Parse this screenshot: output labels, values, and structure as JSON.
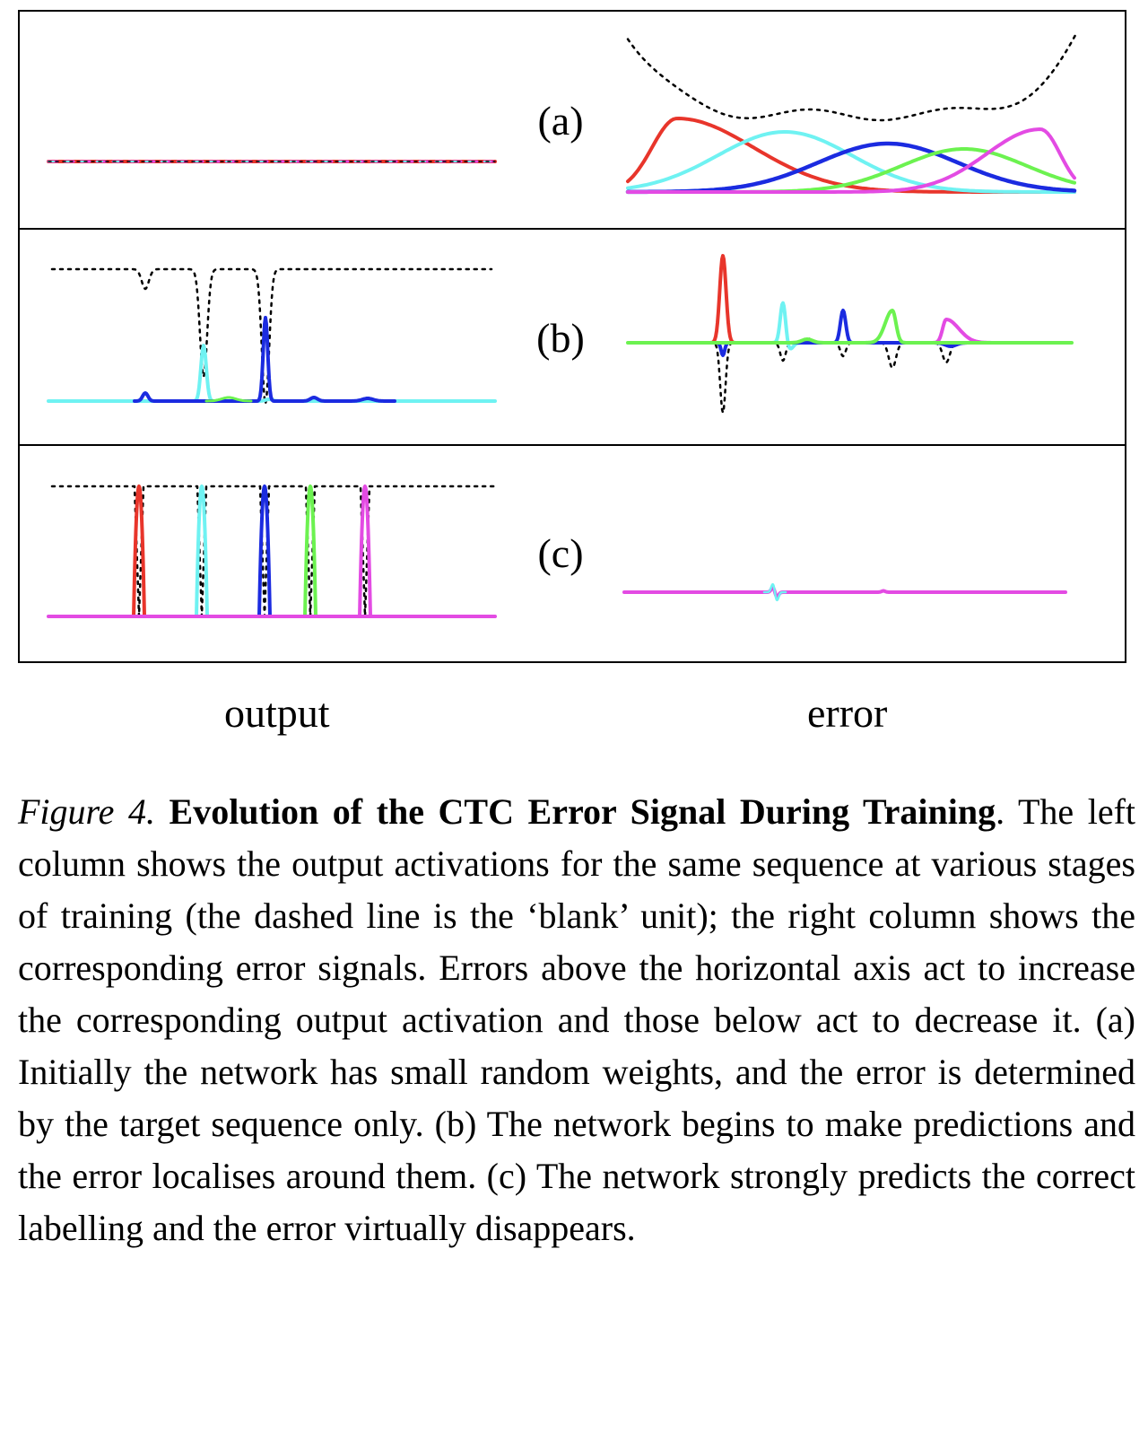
{
  "panels": [
    {
      "id": "a",
      "label": "(a)"
    },
    {
      "id": "b",
      "label": "(b)"
    },
    {
      "id": "c",
      "label": "(c)"
    }
  ],
  "columns": {
    "left": "output",
    "right": "error"
  },
  "colors": {
    "red": "#e8352b",
    "cyan": "#6ff2f2",
    "blue": "#1b2be0",
    "green": "#6cf250",
    "magenta": "#e34be3",
    "blank": "#000000",
    "frame": "#000000"
  },
  "caption": {
    "label": "Figure 4.",
    "title": "Evolution of the CTC Error Signal During Training",
    "text": ". The left column shows the output activations for the same sequence at various stages of training (the dashed line is the ‘blank’ unit); the right column shows the corresponding error signals. Errors above the horizon­tal axis act to increase the corresponding output activation and those below act to decrease it. (a) Initially the network has small random weights, and the error is determined by the target sequence only. (b) The network begins to make predictions and the error localises around them. (c) The network strongly predicts the correct labelling and the er­ror virtually disappears."
  }
}
